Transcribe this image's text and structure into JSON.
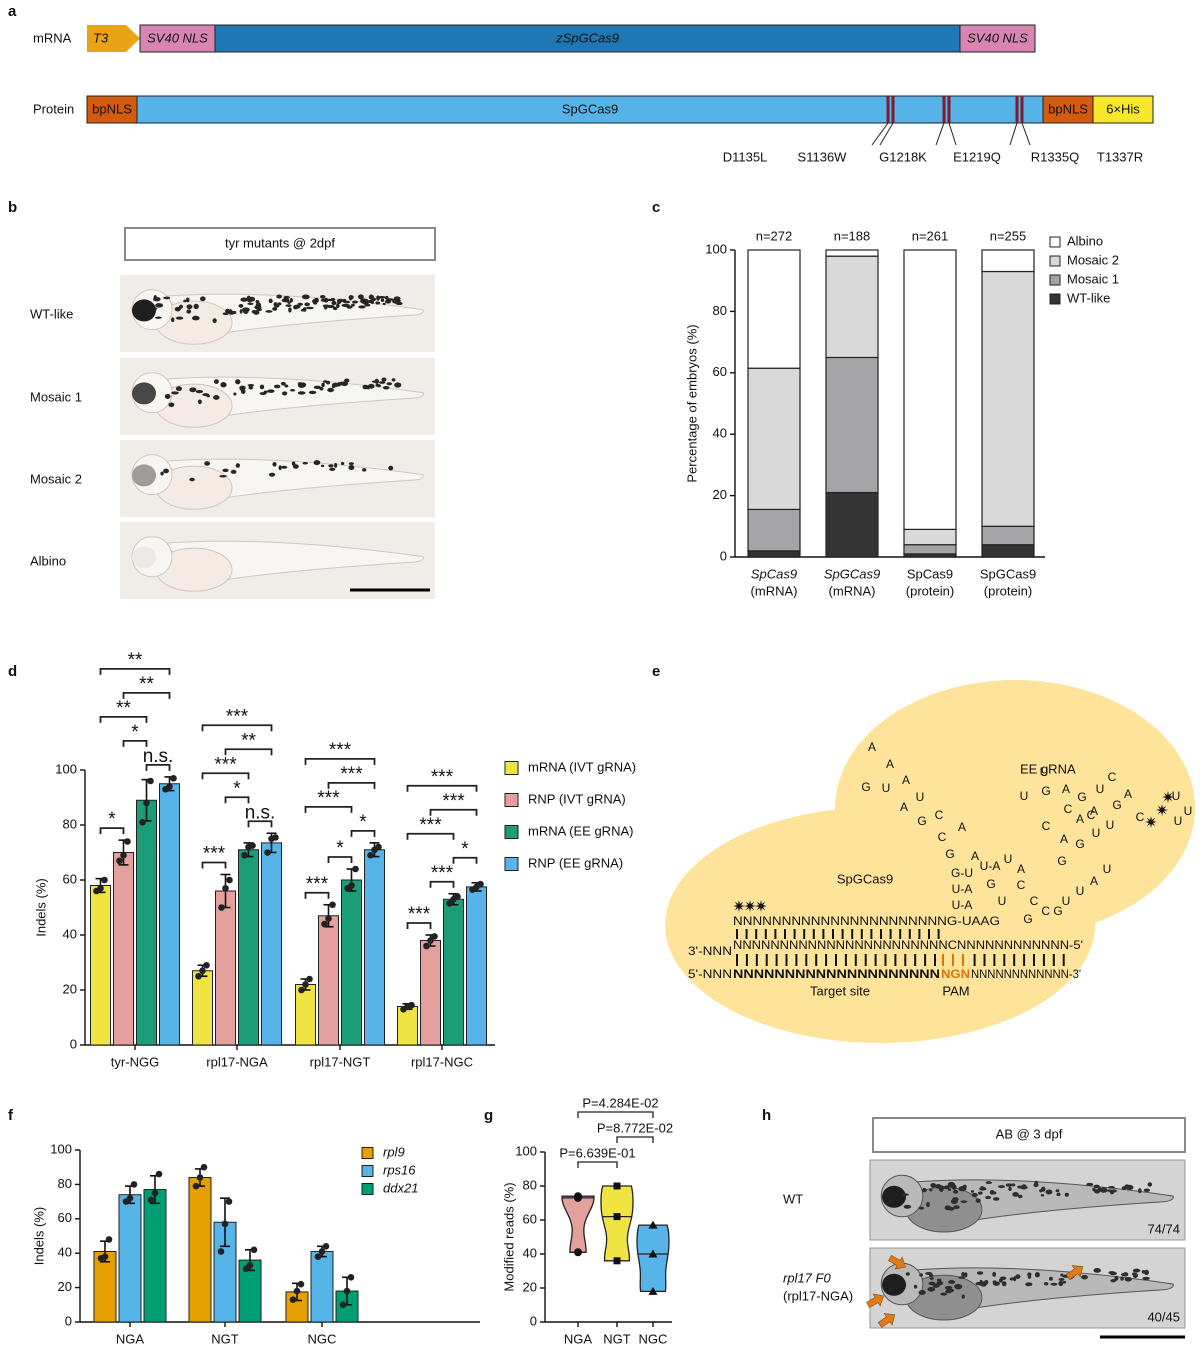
{
  "panel_labels": [
    "a",
    "b",
    "c",
    "d",
    "e",
    "f",
    "g",
    "h"
  ],
  "construct": {
    "mrna": {
      "label": "mRNA",
      "parts": [
        "T3",
        "SV40 NLS",
        "zSpGCas9",
        "SV40 NLS"
      ]
    },
    "protein": {
      "label": "Protein",
      "parts": [
        "bpNLS",
        "SpGCas9",
        "bpNLS",
        "6×His"
      ]
    },
    "mutations": [
      "D1135L",
      "S1136W",
      "G1218K",
      "E1219Q",
      "R1335Q",
      "T1337R"
    ]
  },
  "phenotypes": {
    "title": "tyr mutants @ 2dpf",
    "rows": [
      "WT-like",
      "Mosaic 1",
      "Mosaic 2",
      "Albino"
    ]
  },
  "grna_diagram": {
    "region_labels": [
      "EE gRNA",
      "SpGCas9",
      "Target site",
      "PAM"
    ],
    "strands": [
      "NNNNNNNNNNNNNNNNNNNNNNG-UAAG",
      "NNNNNNNNNNNNNNNNNNNNNNNCNNNNNNNNNNNN-5'",
      "3'-NNN",
      "5'-NNN",
      "NNNNNNNNNNNNNNNNNNNN",
      "NGN",
      "NNNNNNNNNNNN-3'"
    ],
    "letters": [
      "A",
      "A",
      "G",
      "U",
      "A",
      "U",
      "A",
      "G",
      "C",
      "C",
      "A",
      "G",
      "A",
      "G-U",
      "U-A",
      "U-A",
      "U-A",
      "U",
      "A",
      "G",
      "C",
      "U",
      "C",
      "G",
      "C G",
      "U",
      "U",
      "A",
      "U",
      "C",
      "A",
      "A",
      "A",
      "G",
      "U",
      "U",
      "G",
      "U",
      "G",
      "U",
      "A",
      "C",
      "G",
      "U",
      "C",
      "G",
      "C",
      "A",
      "C",
      "U",
      "U",
      "U"
    ]
  },
  "ab_embryos": {
    "title": "AB @ 3 dpf",
    "rows": [
      {
        "label": [
          "WT"
        ],
        "count": "74/74"
      },
      {
        "label": [
          "rpl17 F0",
          "(rpl17-NGA)"
        ],
        "count": "40/45"
      }
    ]
  },
  "chart_data": [
    {
      "type": "stacked_bar",
      "categories": [
        [
          "SpCas9",
          "(mRNA)"
        ],
        [
          "SpGCas9",
          "(mRNA)"
        ],
        [
          "SpCas9",
          "(protein)"
        ],
        [
          "SpGCas9",
          "(protein)"
        ]
      ],
      "annotations": [
        "n=272",
        "n=188",
        "n=261",
        "n=255"
      ],
      "ylabel": "Percentage of embryos (%)",
      "ylim": [
        0,
        100
      ],
      "yticks": [
        0,
        20,
        40,
        60,
        80,
        100
      ],
      "legend": "upper right",
      "series": [
        {
          "name": "WT-like",
          "color": "#333333",
          "values": [
            2,
            21,
            1,
            4
          ]
        },
        {
          "name": "Mosaic 1",
          "color": "#a5a5a7",
          "values": [
            13.5,
            44,
            3,
            6
          ]
        },
        {
          "name": "Mosaic 2",
          "color": "#d9d9d9",
          "values": [
            46,
            33,
            5,
            83
          ]
        },
        {
          "name": "Albino",
          "color": "#ffffff",
          "values": [
            38.5,
            2,
            91,
            7
          ]
        }
      ]
    },
    {
      "type": "grouped_bar",
      "categories": [
        "tyr-NGG",
        "rpl17-NGA",
        "rpl17-NGT",
        "rpl17-NGC"
      ],
      "ylabel": "Indels (%)",
      "ylim": [
        0,
        100
      ],
      "yticks": [
        0,
        20,
        40,
        60,
        80,
        100
      ],
      "legend": "right",
      "series": [
        {
          "name": "mRNA (IVT gRNA)",
          "color": "#f0e442",
          "values": [
            58,
            27,
            22,
            14
          ],
          "errors": [
            2.5,
            2,
            2,
            1
          ],
          "points": [
            [
              56,
              57,
              60
            ],
            [
              25,
              27,
              29
            ],
            [
              20,
              22,
              24
            ],
            [
              13,
              14,
              14.5
            ]
          ]
        },
        {
          "name": "RNP (IVT gRNA)",
          "color": "#e3a09d",
          "values": [
            70,
            56,
            47,
            38
          ],
          "errors": [
            4.5,
            6,
            4,
            2
          ],
          "points": [
            [
              67,
              69,
              74
            ],
            [
              50,
              57,
              60
            ],
            [
              44,
              46,
              51
            ],
            [
              36,
              38,
              39.5
            ]
          ]
        },
        {
          "name": "mRNA (EE gRNA)",
          "color": "#1b9e77",
          "values": [
            89,
            71,
            60,
            53
          ],
          "errors": [
            7.5,
            2.5,
            4,
            2
          ],
          "points": [
            [
              81,
              88,
              96
            ],
            [
              69,
              72,
              72.5
            ],
            [
              57,
              58,
              64
            ],
            [
              51.5,
              53,
              54
            ]
          ]
        },
        {
          "name": "RNP (EE gRNA)",
          "color": "#56b4e9",
          "values": [
            95,
            73.5,
            71,
            57.5
          ],
          "errors": [
            2.5,
            3.5,
            2.5,
            1.5
          ],
          "points": [
            [
              93,
              94,
              97
            ],
            [
              70,
              75,
              75.5
            ],
            [
              69,
              71,
              72
            ],
            [
              56.5,
              57.5,
              58.5
            ]
          ]
        }
      ],
      "significance": [
        {
          "category": 0,
          "from": 0,
          "to": 1,
          "label": "*"
        },
        {
          "category": 0,
          "from": 2,
          "to": 3,
          "label": "n.s."
        },
        {
          "category": 0,
          "from": 1,
          "to": 2,
          "label": "*"
        },
        {
          "category": 0,
          "from": 0,
          "to": 2,
          "label": "**"
        },
        {
          "category": 0,
          "from": 1,
          "to": 3,
          "label": "**"
        },
        {
          "category": 0,
          "from": 0,
          "to": 3,
          "label": "**"
        },
        {
          "category": 1,
          "from": 0,
          "to": 1,
          "label": "***"
        },
        {
          "category": 1,
          "from": 2,
          "to": 3,
          "label": "n.s."
        },
        {
          "category": 1,
          "from": 1,
          "to": 2,
          "label": "*"
        },
        {
          "category": 1,
          "from": 0,
          "to": 2,
          "label": "***"
        },
        {
          "category": 1,
          "from": 1,
          "to": 3,
          "label": "**"
        },
        {
          "category": 1,
          "from": 0,
          "to": 3,
          "label": "***"
        },
        {
          "category": 2,
          "from": 0,
          "to": 1,
          "label": "***"
        },
        {
          "category": 2,
          "from": 1,
          "to": 2,
          "label": "*"
        },
        {
          "category": 2,
          "from": 2,
          "to": 3,
          "label": "*"
        },
        {
          "category": 2,
          "from": 0,
          "to": 2,
          "label": "***"
        },
        {
          "category": 2,
          "from": 1,
          "to": 3,
          "label": "***"
        },
        {
          "category": 2,
          "from": 0,
          "to": 3,
          "label": "***"
        },
        {
          "category": 3,
          "from": 0,
          "to": 1,
          "label": "***"
        },
        {
          "category": 3,
          "from": 1,
          "to": 2,
          "label": "***"
        },
        {
          "category": 3,
          "from": 2,
          "to": 3,
          "label": "*"
        },
        {
          "category": 3,
          "from": 0,
          "to": 2,
          "label": "***"
        },
        {
          "category": 3,
          "from": 1,
          "to": 3,
          "label": "***"
        },
        {
          "category": 3,
          "from": 0,
          "to": 3,
          "label": "***"
        }
      ]
    },
    {
      "type": "grouped_bar",
      "categories": [
        "NGA",
        "NGT",
        "NGC"
      ],
      "ylabel": "Indels (%)",
      "ylim": [
        0,
        100
      ],
      "yticks": [
        0,
        20,
        40,
        60,
        80,
        100
      ],
      "legend": "upper right",
      "series": [
        {
          "name": "rpl9",
          "color": "#e69f00",
          "values": [
            41,
            84,
            17.5
          ],
          "errors": [
            6,
            5,
            5
          ],
          "points": [
            [
              37,
              38,
              48
            ],
            [
              79,
              84,
              90
            ],
            [
              13,
              18,
              22
            ]
          ]
        },
        {
          "name": "rps16",
          "color": "#56b4e9",
          "values": [
            74,
            58,
            41
          ],
          "errors": [
            5,
            14,
            3
          ],
          "points": [
            [
              70,
              72,
              80
            ],
            [
              41,
              57,
              70
            ],
            [
              38,
              41,
              44
            ]
          ]
        },
        {
          "name": "ddx21",
          "color": "#009e73",
          "values": [
            77,
            36,
            18
          ],
          "errors": [
            8,
            6,
            8
          ],
          "points": [
            [
              71,
              75,
              86
            ],
            [
              31,
              33,
              42
            ],
            [
              10,
              18,
              26
            ]
          ]
        }
      ]
    },
    {
      "type": "violin",
      "categories": [
        "NGA",
        "NGT",
        "NGC"
      ],
      "ylabel": "Modified reads (%)",
      "ylim": [
        0,
        100
      ],
      "yticks": [
        0,
        20,
        40,
        60,
        80,
        100
      ],
      "series": [
        {
          "color": "#e3a09d",
          "marker": "circle",
          "values": [
            41,
            73,
            74
          ]
        },
        {
          "color": "#f0e442",
          "marker": "square",
          "values": [
            36,
            62,
            80
          ]
        },
        {
          "color": "#56b4e9",
          "marker": "triangle",
          "values": [
            18,
            40,
            57
          ]
        }
      ],
      "comparisons": [
        {
          "from": 0,
          "to": 1,
          "label": "P=6.639E-01"
        },
        {
          "from": 1,
          "to": 2,
          "label": "P=8.772E-02"
        },
        {
          "from": 0,
          "to": 2,
          "label": "P=4.284E-02"
        }
      ]
    }
  ]
}
